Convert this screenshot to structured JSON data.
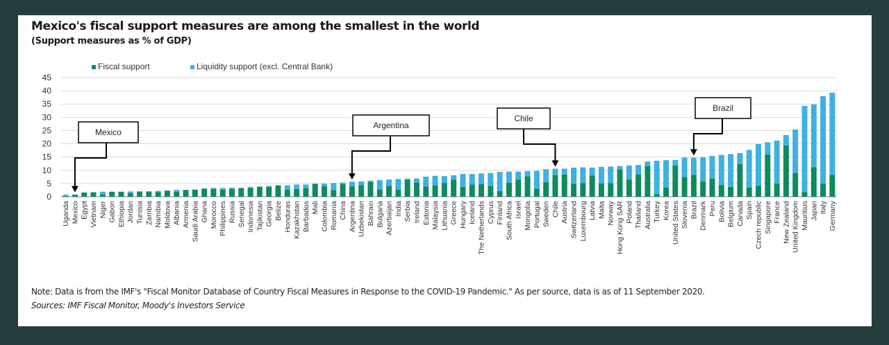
{
  "title": "Mexico's fiscal support measures are among the smallest in the world",
  "subtitle": "(Support measures as % of GDP)",
  "note": "Note: Data is from the IMF's \"Fiscal Monitor Database of Country Fiscal Measures in Response to the COVID-19 Pandemic.\" As per source, data is as of 11 September 2020.",
  "sources": "Sources: IMF Fiscal Monitor, Moody's Investors Service",
  "colors": {
    "fiscal": "#0f8a5f",
    "liquidity": "#3fb0e3",
    "grid": "#d9d9d9",
    "frame": "#263d3d"
  },
  "chart_data": {
    "type": "bar",
    "stacked": true,
    "title": "Mexico's fiscal support measures are among the smallest in the world",
    "subtitle": "(Support measures as % of GDP)",
    "xlabel": "",
    "ylabel": "",
    "ylim": [
      0,
      45
    ],
    "yticks": [
      0,
      5,
      10,
      15,
      20,
      25,
      30,
      35,
      40,
      45
    ],
    "grid": true,
    "legend_position": "top-left",
    "categories": [
      "Uganda",
      "Mexico",
      "Egypt",
      "Vietnam",
      "Niger",
      "Gabon",
      "Ethiopia",
      "Jordan",
      "Tunisia",
      "Zambia",
      "Namibia",
      "Moldova",
      "Albania",
      "Armenia",
      "Saudi Arabia",
      "Ghana",
      "Morocco",
      "Philippines",
      "Russia",
      "Senegal",
      "Indonesia",
      "Tajikistan",
      "Georgia",
      "Belize",
      "Honduras",
      "Kazakhstan",
      "Barbados",
      "Mali",
      "Colombia",
      "Romania",
      "China",
      "Argentina",
      "Uzbekistan",
      "Bahrain",
      "Bulgaria",
      "Azerbaijan",
      "India",
      "Serbia",
      "Ireland",
      "Estonia",
      "Malaysia",
      "Lithuania",
      "Greece",
      "Hungary",
      "Iceland",
      "The Netherlands",
      "Cyprus",
      "Finland",
      "South Africa",
      "Israel",
      "Mongolia",
      "Portugal",
      "Sweden",
      "Chile",
      "Austria",
      "Switzerland",
      "Luxembourg",
      "Latvia",
      "Malta",
      "Norway",
      "Hong Kong SAR",
      "Poland",
      "Thailand",
      "Australia",
      "Turkey",
      "Korea",
      "United States",
      "Slovenia",
      "Brazil",
      "Denmark",
      "Peru",
      "Bolivia",
      "Belgium",
      "Canada",
      "Spain",
      "Czech republic",
      "Singapore",
      "France",
      "New Zealand",
      "United Kingdom",
      "Mauritius",
      "Japan",
      "Italy",
      "Germany"
    ],
    "series": [
      {
        "name": "Fiscal support",
        "values": [
          0.3,
          0.7,
          1.6,
          1.7,
          0.9,
          1.9,
          1.9,
          1.3,
          1.9,
          2.0,
          1.7,
          2.3,
          1.9,
          2.6,
          2.7,
          3.1,
          3.0,
          2.7,
          2.9,
          3.3,
          3.3,
          3.8,
          3.7,
          4.3,
          2.7,
          2.9,
          3.3,
          4.9,
          4.0,
          2.5,
          4.8,
          3.9,
          4.4,
          5.6,
          2.8,
          4.1,
          2.7,
          6.4,
          5.4,
          3.8,
          4.3,
          5.2,
          6.5,
          3.7,
          4.6,
          4.7,
          4.1,
          2.1,
          5.3,
          6.4,
          7.8,
          3.0,
          5.5,
          8.2,
          8.4,
          4.9,
          5.2,
          8.0,
          5.0,
          5.1,
          10.3,
          6.5,
          8.4,
          11.6,
          1.0,
          3.5,
          11.8,
          7.5,
          8.3,
          5.8,
          6.8,
          4.5,
          3.7,
          12.3,
          3.5,
          4.2,
          16.0,
          5.0,
          19.4,
          9.0,
          1.8,
          11.2,
          4.9,
          8.3
        ]
      },
      {
        "name": "Liquidity support (excl. Central Bank)",
        "values": [
          0.5,
          0.2,
          0.0,
          0.0,
          1.0,
          0.0,
          0.0,
          0.7,
          0.2,
          0.0,
          0.5,
          0.1,
          0.7,
          0.0,
          0.0,
          0.0,
          0.3,
          0.6,
          0.5,
          0.0,
          0.4,
          0.0,
          0.4,
          0.0,
          1.6,
          1.7,
          1.3,
          0.0,
          1.0,
          2.7,
          0.6,
          1.8,
          1.4,
          0.5,
          3.5,
          2.4,
          4.0,
          0.4,
          1.5,
          3.8,
          3.6,
          2.6,
          1.6,
          4.9,
          4.0,
          4.1,
          4.9,
          7.3,
          4.2,
          3.1,
          1.9,
          6.8,
          4.9,
          2.4,
          2.2,
          6.1,
          5.9,
          3.0,
          6.3,
          6.3,
          1.3,
          5.3,
          3.6,
          1.7,
          12.6,
          10.3,
          2.1,
          7.3,
          6.5,
          9.1,
          8.6,
          11.3,
          12.4,
          4.2,
          14.2,
          15.7,
          4.6,
          16.2,
          3.9,
          16.4,
          32.5,
          23.7,
          33.1,
          31.0
        ]
      }
    ],
    "annotations": [
      {
        "label": "Mexico",
        "target": "Mexico"
      },
      {
        "label": "Argentina",
        "target": "Argentina"
      },
      {
        "label": "Chile",
        "target": "Chile"
      },
      {
        "label": "Brazil",
        "target": "Brazil"
      }
    ]
  }
}
